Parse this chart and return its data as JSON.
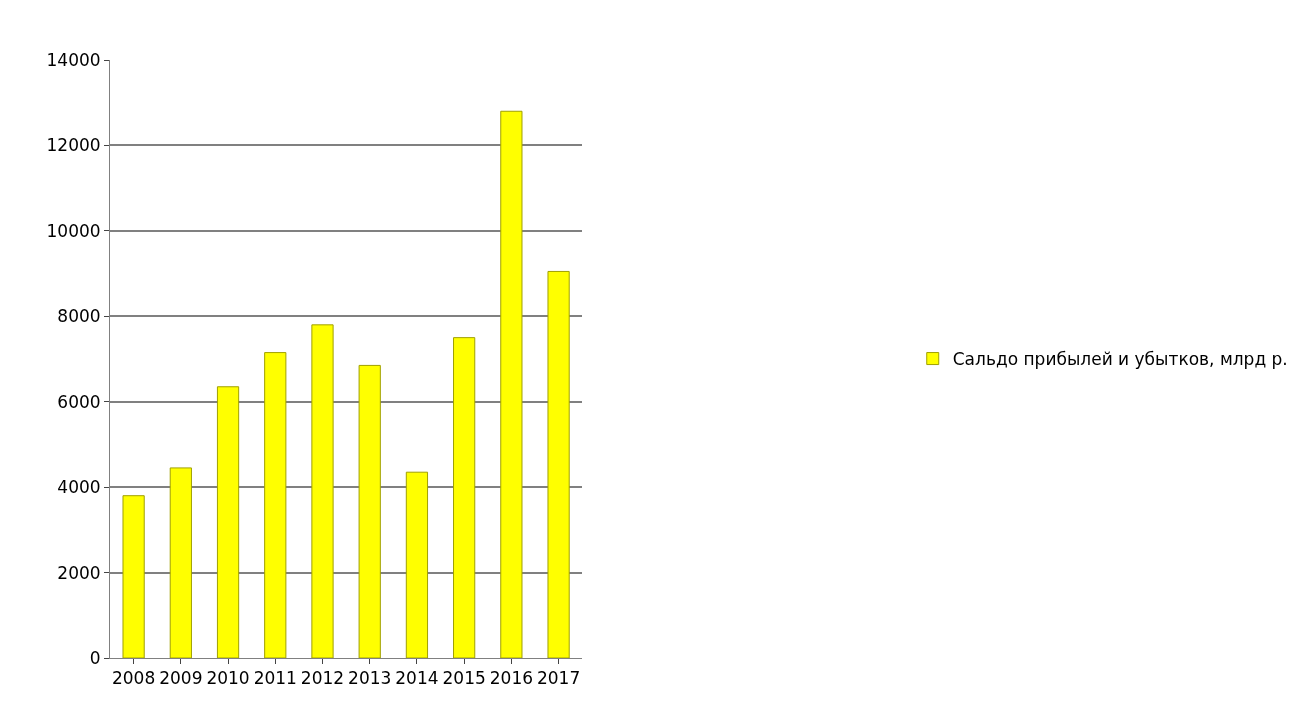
{
  "chart_data": {
    "type": "bar",
    "categories": [
      "2008",
      "2009",
      "2010",
      "2011",
      "2012",
      "2013",
      "2014",
      "2015",
      "2016",
      "2017"
    ],
    "series": [
      {
        "name": "Сальдо прибылей и убытков, млрд р.",
        "color": "#ffff00",
        "values": [
          3800,
          4450,
          6350,
          7150,
          7800,
          6850,
          4350,
          7500,
          12800,
          9050
        ]
      }
    ],
    "ylim": [
      0,
      14000
    ],
    "yticks": [
      0,
      2000,
      4000,
      6000,
      8000,
      10000,
      12000,
      14000
    ],
    "grid": "y",
    "legend": "right"
  }
}
